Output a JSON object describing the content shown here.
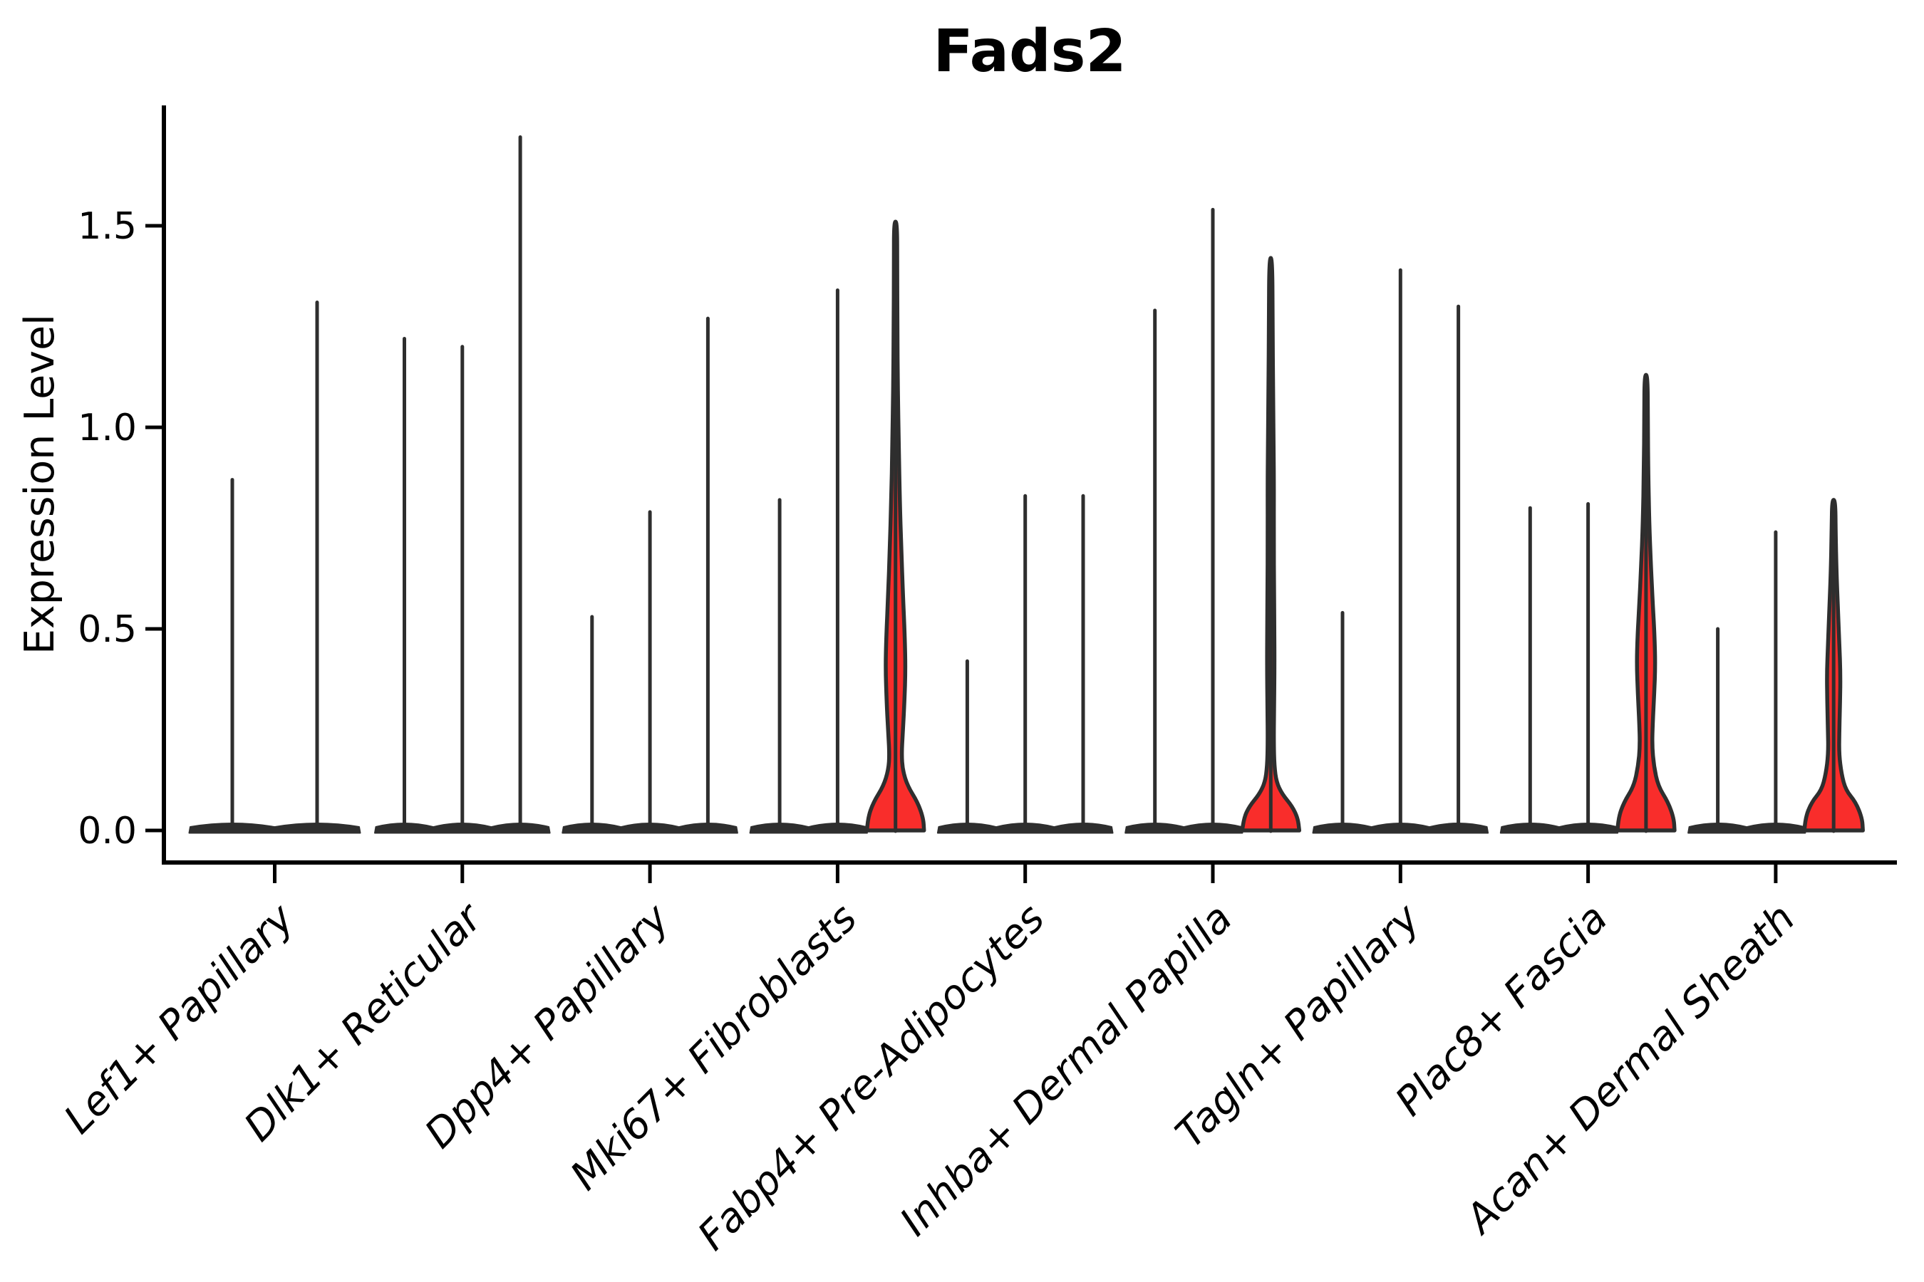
{
  "chart_data": {
    "type": "violin",
    "title": "Fads2",
    "xlabel": "",
    "ylabel": "Expression Level",
    "y_ticks": [
      "0.0",
      "0.5",
      "1.0",
      "1.5"
    ],
    "y_tick_values": [
      0.0,
      0.5,
      1.0,
      1.5
    ],
    "ylim": [
      -0.08,
      1.8
    ],
    "grid": false,
    "legend": "none",
    "x_tick_rotation_degrees": 45,
    "colors": {
      "violin_fill_red": "#F92D2B",
      "violin_line": "#2E2E2E",
      "axis": "#000000",
      "text": "#000000",
      "background": "#FFFFFF"
    },
    "groups": [
      {
        "category": "Lef1+ Papillary",
        "violins": [
          {
            "max": 0.87,
            "filled": false
          },
          {
            "max": 1.31,
            "filled": false
          }
        ]
      },
      {
        "category": "Dlk1+ Reticular",
        "violins": [
          {
            "max": 1.22,
            "filled": false
          },
          {
            "max": 1.2,
            "filled": false
          },
          {
            "max": 1.72,
            "filled": false
          }
        ]
      },
      {
        "category": "Dpp4+ Papillary",
        "violins": [
          {
            "max": 0.53,
            "filled": false
          },
          {
            "max": 0.79,
            "filled": false
          },
          {
            "max": 1.27,
            "filled": false
          }
        ]
      },
      {
        "category": "Mki67+ Fibroblasts",
        "violins": [
          {
            "max": 0.82,
            "filled": false
          },
          {
            "max": 1.34,
            "filled": false
          },
          {
            "max": 1.51,
            "filled": true,
            "profile": [
              [
                0.0,
                40
              ],
              [
                0.03,
                39
              ],
              [
                0.07,
                31
              ],
              [
                0.11,
                17
              ],
              [
                0.15,
                10
              ],
              [
                0.19,
                8.5
              ],
              [
                0.25,
                10.5
              ],
              [
                0.32,
                12.5
              ],
              [
                0.4,
                14
              ],
              [
                0.48,
                13
              ],
              [
                0.58,
                10.5
              ],
              [
                0.7,
                8
              ],
              [
                0.82,
                6
              ],
              [
                0.95,
                4.5
              ],
              [
                1.1,
                3.2
              ],
              [
                1.25,
                2.6
              ],
              [
                1.4,
                2.3
              ],
              [
                1.51,
                2.2
              ]
            ]
          }
        ]
      },
      {
        "category": "Fabp4+ Pre-Adipocytes",
        "violins": [
          {
            "max": 0.42,
            "filled": false
          },
          {
            "max": 0.83,
            "filled": false
          },
          {
            "max": 0.83,
            "filled": false
          }
        ]
      },
      {
        "category": "Inhba+ Dermal Papilla",
        "violins": [
          {
            "max": 1.29,
            "filled": false
          },
          {
            "max": 1.54,
            "filled": false
          },
          {
            "max": 1.42,
            "filled": true,
            "profile": [
              [
                0.0,
                40
              ],
              [
                0.03,
                38
              ],
              [
                0.06,
                30
              ],
              [
                0.09,
                16
              ],
              [
                0.12,
                8
              ],
              [
                0.16,
                5
              ],
              [
                0.22,
                4.2
              ],
              [
                0.3,
                4.6
              ],
              [
                0.4,
                5.2
              ],
              [
                0.5,
                5.0
              ],
              [
                0.6,
                4.6
              ],
              [
                0.72,
                4.2
              ],
              [
                0.85,
                4.4
              ],
              [
                0.95,
                4.0
              ],
              [
                1.1,
                3.2
              ],
              [
                1.25,
                2.6
              ],
              [
                1.42,
                2.2
              ]
            ]
          }
        ]
      },
      {
        "category": "Tagln+ Papillary",
        "violins": [
          {
            "max": 0.54,
            "filled": false
          },
          {
            "max": 1.39,
            "filled": false
          },
          {
            "max": 1.3,
            "filled": false
          }
        ]
      },
      {
        "category": "Plac8+ Fascia",
        "violins": [
          {
            "max": 0.8,
            "filled": false
          },
          {
            "max": 0.81,
            "filled": false
          },
          {
            "max": 1.13,
            "filled": true,
            "profile": [
              [
                0.0,
                40
              ],
              [
                0.03,
                39
              ],
              [
                0.07,
                31
              ],
              [
                0.11,
                17
              ],
              [
                0.16,
                11
              ],
              [
                0.21,
                8.5
              ],
              [
                0.27,
                9.5
              ],
              [
                0.34,
                11.5
              ],
              [
                0.41,
                13
              ],
              [
                0.48,
                12
              ],
              [
                0.56,
                9.5
              ],
              [
                0.65,
                7
              ],
              [
                0.76,
                4.5
              ],
              [
                0.9,
                3
              ],
              [
                1.02,
                2.5
              ],
              [
                1.13,
                2.2
              ]
            ]
          }
        ]
      },
      {
        "category": "Acan+ Dermal Sheath",
        "violins": [
          {
            "max": 0.5,
            "filled": false
          },
          {
            "max": 0.74,
            "filled": false
          },
          {
            "max": 0.82,
            "filled": true,
            "profile": [
              [
                0.0,
                41
              ],
              [
                0.03,
                40
              ],
              [
                0.07,
                31
              ],
              [
                0.1,
                17
              ],
              [
                0.14,
                11
              ],
              [
                0.19,
                7.5
              ],
              [
                0.25,
                8
              ],
              [
                0.32,
                9
              ],
              [
                0.39,
                9.5
              ],
              [
                0.46,
                8
              ],
              [
                0.55,
                6
              ],
              [
                0.64,
                4
              ],
              [
                0.74,
                2.8
              ],
              [
                0.82,
                2.3
              ]
            ]
          }
        ]
      }
    ]
  }
}
